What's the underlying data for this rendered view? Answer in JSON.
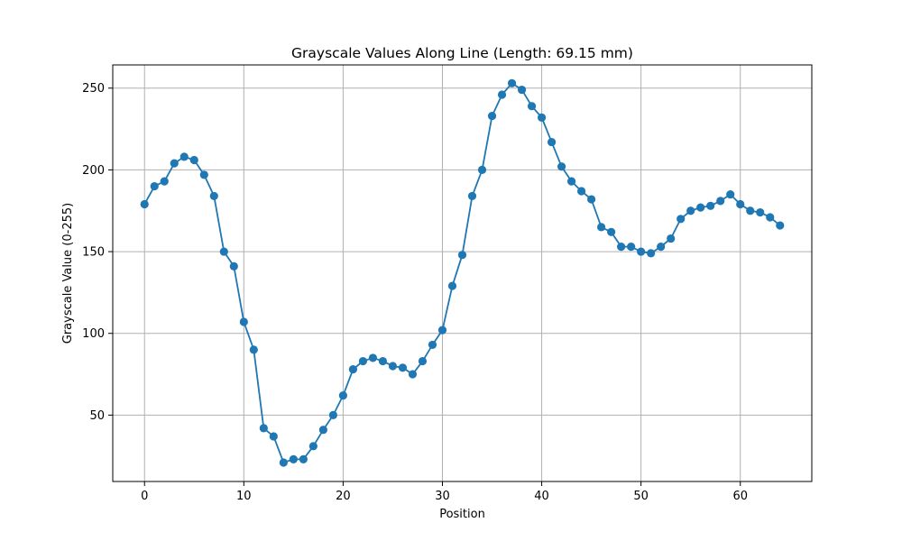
{
  "chart_data": {
    "type": "line",
    "title": "Grayscale Values Along Line (Length: 69.15 mm)",
    "xlabel": "Position",
    "ylabel": "Grayscale Value (0-255)",
    "xlim": [
      -3.2,
      67.2
    ],
    "ylim": [
      9.4,
      264.2
    ],
    "xticks": [
      0,
      10,
      20,
      30,
      40,
      50,
      60
    ],
    "yticks": [
      50,
      100,
      150,
      200,
      250
    ],
    "grid": true,
    "line_color": "#1f77b4",
    "grid_color": "#b0b0b0",
    "marker": "circle",
    "series": [
      {
        "x": [
          0,
          1,
          2,
          3,
          4,
          5,
          6,
          7,
          8,
          9,
          10,
          11,
          12,
          13,
          14,
          15,
          16,
          17,
          18,
          19,
          20,
          21,
          22,
          23,
          24,
          25,
          26,
          27,
          28,
          29,
          30,
          31,
          32,
          33,
          34,
          35,
          36,
          37,
          38,
          39,
          40,
          41,
          42,
          43,
          44,
          45,
          46,
          47,
          48,
          49,
          50,
          51,
          52,
          53,
          54,
          55,
          56,
          57,
          58,
          59,
          60,
          61,
          62,
          63,
          64
        ],
        "y": [
          179,
          190,
          193,
          204,
          208,
          206,
          197,
          184,
          150,
          141,
          107,
          90,
          42,
          37,
          21,
          23,
          23,
          31,
          41,
          50,
          62,
          78,
          83,
          85,
          83,
          80,
          79,
          75,
          83,
          93,
          102,
          129,
          148,
          184,
          200,
          233,
          246,
          253,
          249,
          239,
          232,
          217,
          202,
          193,
          187,
          182,
          165,
          162,
          153,
          153,
          150,
          149,
          153,
          158,
          170,
          175,
          177,
          178,
          181,
          185,
          179,
          175,
          174,
          171,
          166
        ]
      }
    ]
  }
}
